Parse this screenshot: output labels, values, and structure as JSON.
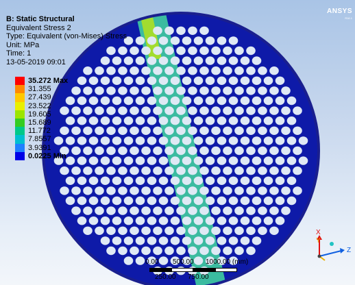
{
  "info": {
    "title": "B: Static Structural",
    "result_name": "Equivalent Stress 2",
    "type_line": "Type: Equivalent (von-Mises) Stress",
    "unit_line": "Unit: MPa",
    "time_line": "Time: 1",
    "datetime": "13-05-2019 09:01"
  },
  "legend": [
    {
      "label": "35.272 Max",
      "color": "#ff0000",
      "kind": "max"
    },
    {
      "label": "31.355",
      "color": "#ff8a00",
      "kind": "mid"
    },
    {
      "label": "27.439",
      "color": "#ffc800",
      "kind": "mid"
    },
    {
      "label": "23.522",
      "color": "#e9ef00",
      "kind": "mid"
    },
    {
      "label": "19.605",
      "color": "#9be500",
      "kind": "mid"
    },
    {
      "label": "15.689",
      "color": "#33cc22",
      "kind": "mid"
    },
    {
      "label": "11.772",
      "color": "#00c889",
      "kind": "mid"
    },
    {
      "label": "7.8557",
      "color": "#00bfd0",
      "kind": "mid"
    },
    {
      "label": "3.9391",
      "color": "#1f80ff",
      "kind": "mid"
    },
    {
      "label": "0.0225 Min",
      "color": "#0000e6",
      "kind": "min"
    }
  ],
  "logo": {
    "text": "ANSYS",
    "version": "R16.1"
  },
  "scale": {
    "top_labels": [
      "0.00",
      "500.00",
      "1000.00 (mm)"
    ],
    "bottom_labels": [
      "250.00",
      "750.00"
    ]
  },
  "triad": {
    "x": "X",
    "y": "Y",
    "z": "Z"
  },
  "colors": {
    "plate": "#0e1aa8",
    "rim": "#1a1f8e",
    "holes": "#dfe9f5",
    "band": "#3fc9a0",
    "band_highlight": "#b5e21b"
  }
}
